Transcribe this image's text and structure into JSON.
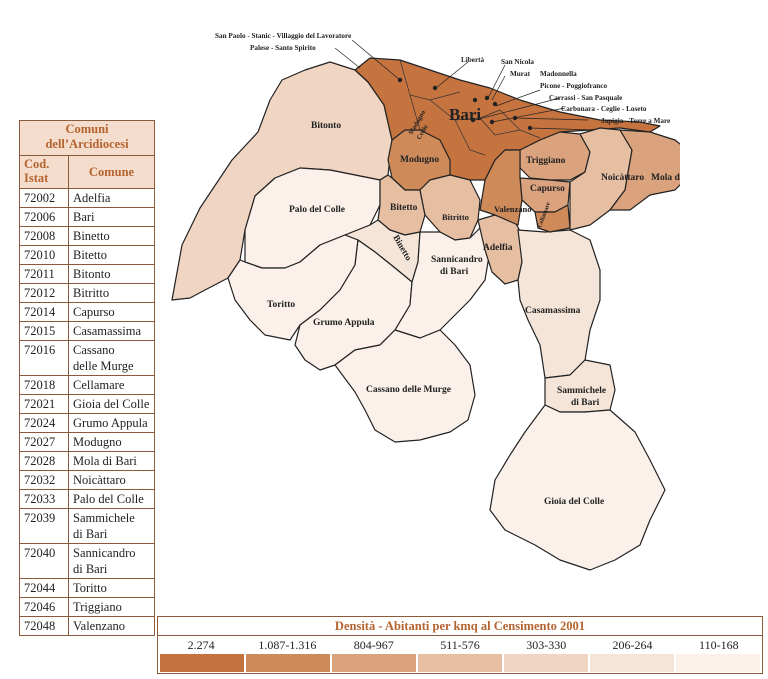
{
  "table": {
    "title_line1": "Comuni",
    "title_line2": "dell’Arcidiocesi",
    "col_code_line1": "Cod.",
    "col_code_line2": "Istat",
    "col_name": "Comune",
    "rows": [
      {
        "code": "72002",
        "name": "Adelfia"
      },
      {
        "code": "72006",
        "name": "Bari"
      },
      {
        "code": "72008",
        "name": "Binetto"
      },
      {
        "code": "72010",
        "name": "Bitetto"
      },
      {
        "code": "72011",
        "name": "Bitonto"
      },
      {
        "code": "72012",
        "name": "Bitritto"
      },
      {
        "code": "72014",
        "name": "Capurso"
      },
      {
        "code": "72015",
        "name": "Casamassima"
      },
      {
        "code": "72016",
        "name": "Cassano",
        "name2": "delle Murge"
      },
      {
        "code": "72018",
        "name": "Cellamare"
      },
      {
        "code": "72021",
        "name": "Gioia del Colle"
      },
      {
        "code": "72024",
        "name": "Grumo Appula"
      },
      {
        "code": "72027",
        "name": "Modugno"
      },
      {
        "code": "72028",
        "name": "Mola di Bari"
      },
      {
        "code": "72032",
        "name": "Noicàttaro"
      },
      {
        "code": "72033",
        "name": "Palo del Colle"
      },
      {
        "code": "72039",
        "name": "Sammichele",
        "name2": "di Bari"
      },
      {
        "code": "72040",
        "name": "Sannicandro",
        "name2": "di Bari"
      },
      {
        "code": "72044",
        "name": "Toritto"
      },
      {
        "code": "72046",
        "name": "Triggiano"
      },
      {
        "code": "72048",
        "name": "Valenzano"
      }
    ]
  },
  "map": {
    "colors": {
      "c1": "#c5733f",
      "c2": "#cf8a5a",
      "c3": "#daa27d",
      "c4": "#e6bfa3",
      "c5": "#efd5c2",
      "c6": "#f5e5d8",
      "c7": "#fbf1ea"
    },
    "labels": {
      "bari": "Bari",
      "bitonto": "Bitonto",
      "modugno": "Modugno",
      "modugno_small1": "Modugno",
      "modugno_small2": "Cellie",
      "palo": "Palo del Colle",
      "bitetto": "Bitetto",
      "bitritto": "Bitritto",
      "binetto": "Binetto",
      "sannicandro1": "Sannicandro",
      "sannicandro2": "di Bari",
      "toritto": "Toritto",
      "grumo": "Grumo Appula",
      "cassano": "Cassano delle Murge",
      "adelfia": "Adelfia",
      "casamassima": "Casamassima",
      "sammichele1": "Sammichele",
      "sammichele2": "di Bari",
      "gioia": "Gioia del Colle",
      "triggiano": "Triggiano",
      "capurso": "Capurso",
      "valenzano": "Valenzano",
      "cellamare": "Cellamare",
      "noicattaro": "Noicàttaro",
      "mola": "Mola di Bari"
    },
    "callouts": [
      "San Paolo - Stanic - Villaggio del Lavoratore",
      "Palese - Santo Spirito",
      "Libertà",
      "San Nicola",
      "Murat",
      "Madonnella",
      "Picone - Poggiofranco",
      "Carrassi - San Pasquale",
      "Carbonara - Ceglie - Loseto",
      "Japigia - Torre a Mare"
    ]
  },
  "legend": {
    "title": "Densità - Abitanti per kmq al Censimento 2001",
    "classes": [
      {
        "label": "2.274",
        "color": "#c5733f"
      },
      {
        "label": "1.087-1.316",
        "color": "#cf8a5a"
      },
      {
        "label": "804-967",
        "color": "#daa27d"
      },
      {
        "label": "511-576",
        "color": "#e6bfa3"
      },
      {
        "label": "303-330",
        "color": "#efd5c2"
      },
      {
        "label": "206-264",
        "color": "#f5e5d8"
      },
      {
        "label": "110-168",
        "color": "#fbf1ea"
      }
    ]
  }
}
